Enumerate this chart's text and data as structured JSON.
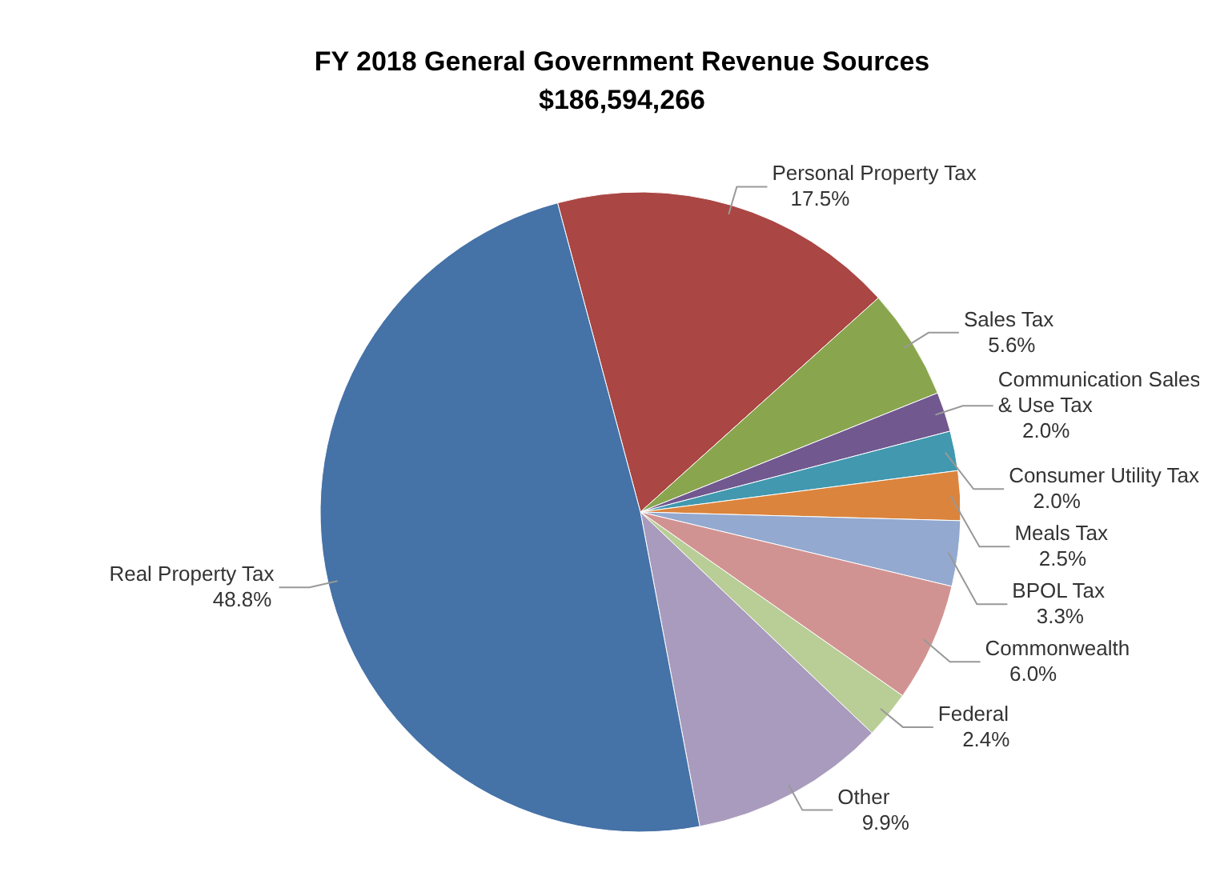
{
  "chart_data": {
    "type": "pie",
    "title": "FY 2018 General Government Revenue Sources",
    "subtitle": "$186,594,266",
    "categories": [
      "Personal Property Tax",
      "Sales Tax",
      "Communication Sales & Use Tax",
      "Consumer  Utility Tax",
      "Meals Tax",
      "BPOL Tax",
      "Commonwealth",
      "Federal",
      "Other",
      "Real Property Tax"
    ],
    "values": [
      17.5,
      5.6,
      2.0,
      2.0,
      2.5,
      3.3,
      6.0,
      2.4,
      9.9,
      48.8
    ],
    "value_labels": [
      "17.5%",
      "5.6%",
      "2.0%",
      "2.0%",
      "2.5%",
      "3.3%",
      "6.0%",
      "2.4%",
      "9.9%",
      "48.8%"
    ],
    "colors": [
      "#aa4643",
      "#89a54e",
      "#71588f",
      "#4198af",
      "#db843d",
      "#93a9cf",
      "#d19392",
      "#b9cd96",
      "#a99bbd",
      "#4572a7"
    ],
    "legend": false
  }
}
